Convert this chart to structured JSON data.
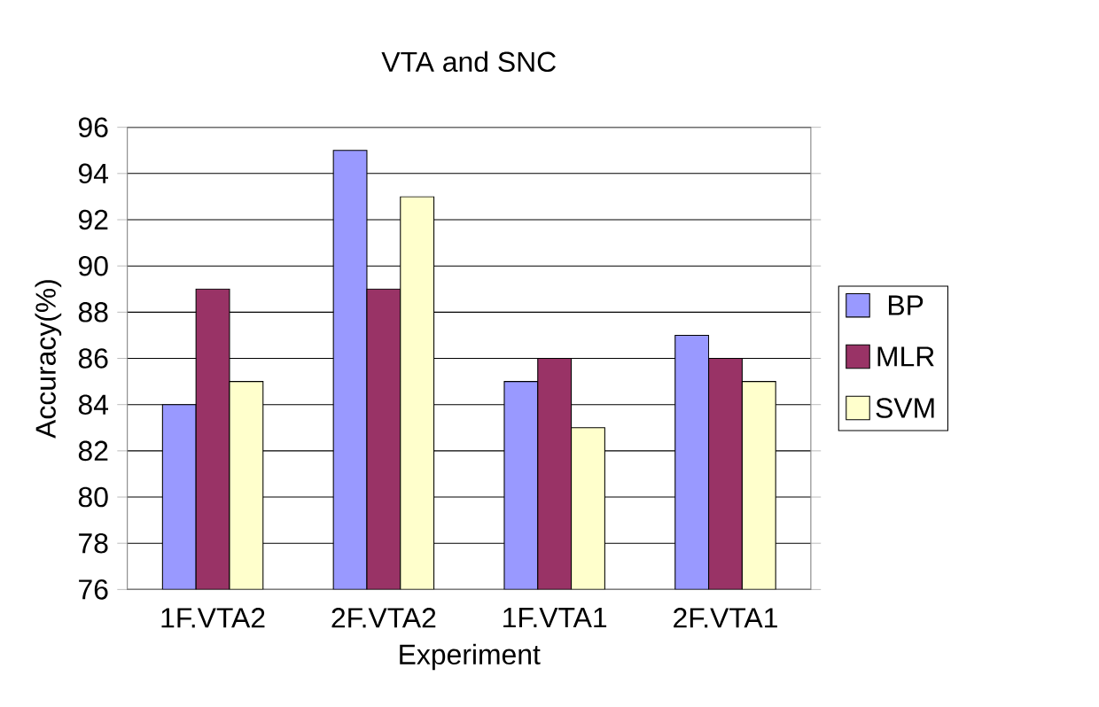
{
  "chart_data": {
    "type": "bar",
    "title": "VTA and SNC",
    "xlabel": "Experiment",
    "ylabel": "Accuracy(%)",
    "categories": [
      "1F.VTA2",
      "2F.VTA2",
      "1F.VTA1",
      "2F.VTA1"
    ],
    "series": [
      {
        "name": "BP",
        "color": "#9999ff",
        "values": [
          84,
          95,
          85,
          87
        ]
      },
      {
        "name": "MLR",
        "color": "#993366",
        "values": [
          89,
          89,
          86,
          86
        ]
      },
      {
        "name": "SVM",
        "color": "#ffffcc",
        "values": [
          85,
          93,
          83,
          85
        ]
      }
    ],
    "ylim": [
      76,
      96
    ],
    "yticks": [
      76,
      78,
      80,
      82,
      84,
      86,
      88,
      90,
      92,
      94,
      96
    ],
    "grid": "y",
    "legend": "right"
  }
}
